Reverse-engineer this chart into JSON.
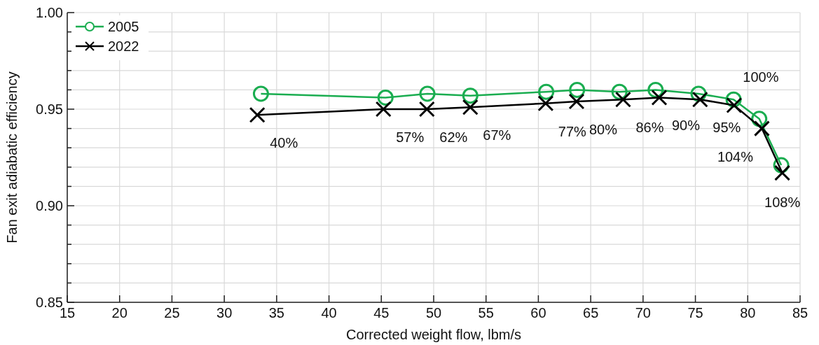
{
  "chart_data": {
    "type": "line",
    "xlabel": "Corrected weight flow, lbm/s",
    "ylabel": "Fan exit adiabatic efficiency",
    "xlim": [
      15,
      85
    ],
    "xticks": [
      15,
      20,
      25,
      30,
      35,
      40,
      45,
      50,
      55,
      60,
      65,
      70,
      75,
      80,
      85
    ],
    "ylim": [
      0.85,
      1.0
    ],
    "yticks": [
      {
        "value": 0.85,
        "label": "0.85"
      },
      {
        "value": 0.86,
        "label": null
      },
      {
        "value": 0.87,
        "label": null
      },
      {
        "value": 0.88,
        "label": null
      },
      {
        "value": 0.89,
        "label": null
      },
      {
        "value": 0.9,
        "label": "0.90"
      },
      {
        "value": 0.91,
        "label": null
      },
      {
        "value": 0.92,
        "label": null
      },
      {
        "value": 0.93,
        "label": null
      },
      {
        "value": 0.94,
        "label": null
      },
      {
        "value": 0.95,
        "label": "0.95"
      },
      {
        "value": 0.96,
        "label": null
      },
      {
        "value": 0.97,
        "label": null
      },
      {
        "value": 0.98,
        "label": null
      },
      {
        "value": 0.99,
        "label": null
      },
      {
        "value": 1.0,
        "label": "1.00"
      }
    ],
    "grid": true,
    "legend": "top left",
    "series": [
      {
        "name": "2005",
        "color": "#1aad50",
        "marker": "circle",
        "x": [
          33.5,
          45.4,
          49.4,
          53.5,
          60.75,
          63.7,
          67.75,
          71.2,
          75.3,
          78.65,
          81.1,
          83.2
        ],
        "values": [
          0.958,
          0.956,
          0.958,
          0.957,
          0.959,
          0.96,
          0.959,
          0.96,
          0.958,
          0.955,
          0.945,
          0.921
        ]
      },
      {
        "name": "2022",
        "color": "#000000",
        "marker": "cross",
        "x": [
          33.15,
          45.2,
          49.35,
          53.5,
          60.7,
          63.65,
          68.1,
          71.55,
          75.45,
          78.7,
          81.35,
          83.3
        ],
        "values": [
          0.947,
          0.95,
          0.95,
          0.951,
          0.953,
          0.954,
          0.955,
          0.956,
          0.955,
          0.952,
          0.94,
          0.917
        ]
      }
    ],
    "annotations": [
      {
        "text": "40%",
        "x": 33.15,
        "y": 0.947
      },
      {
        "text": "57%",
        "x": 45.2,
        "y": 0.95
      },
      {
        "text": "62%",
        "x": 49.35,
        "y": 0.95
      },
      {
        "text": "67%",
        "x": 53.5,
        "y": 0.951
      },
      {
        "text": "77%",
        "x": 60.7,
        "y": 0.953
      },
      {
        "text": "80%",
        "x": 63.65,
        "y": 0.954
      },
      {
        "text": "86%",
        "x": 68.1,
        "y": 0.955
      },
      {
        "text": "90%",
        "x": 71.55,
        "y": 0.956
      },
      {
        "text": "95%",
        "x": 75.45,
        "y": 0.955
      },
      {
        "text": "100%",
        "x": 78.7,
        "y": 0.952
      },
      {
        "text": "104%",
        "x": 81.35,
        "y": 0.94
      },
      {
        "text": "108%",
        "x": 83.3,
        "y": 0.917
      }
    ]
  }
}
